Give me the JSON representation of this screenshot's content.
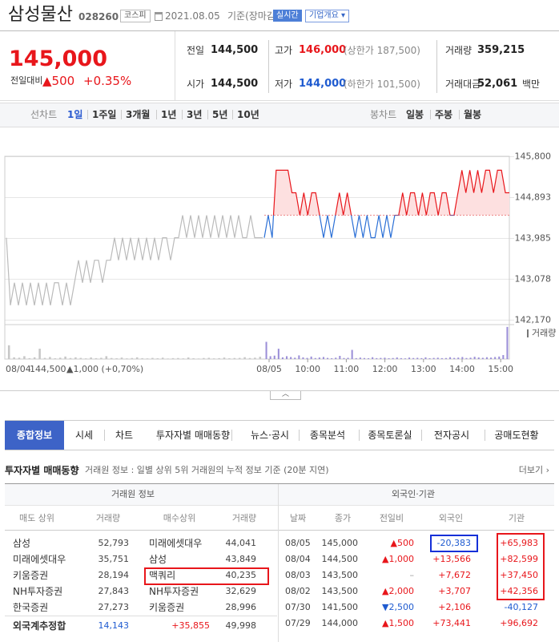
{
  "header": {
    "name": "삼성물산",
    "code": "028260",
    "market": "코스피",
    "date": "2021.08.05",
    "status": "기준(장마감)",
    "realtime": "실시간",
    "company_menu": "기업개요 ▾"
  },
  "price": {
    "current": "145,000",
    "change_label": "전일대비",
    "change": "▲500",
    "change_rate": "+0.35%",
    "stats": [
      {
        "label": "전일",
        "value": "144,500"
      },
      {
        "label": "고가",
        "value": "146,000",
        "note": "(상한가 187,500)"
      },
      {
        "label": "거래량",
        "value": "359,215"
      },
      {
        "label": "시가",
        "value": "144,500"
      },
      {
        "label": "저가",
        "value": "144,000",
        "note": "(하한가 101,500)"
      },
      {
        "label": "거래대금",
        "value": "52,061",
        "unit": "백만"
      }
    ]
  },
  "chart_tabs": {
    "line_label": "선차트",
    "line_periods": [
      "1일",
      "1주일",
      "3개월",
      "1년",
      "3년",
      "5년",
      "10년"
    ],
    "active_period": 0,
    "candle_label": "봉차트",
    "candle_periods": [
      "일봉",
      "주봉",
      "월봉"
    ]
  },
  "chart_data": {
    "type": "line",
    "ylim": [
      142070,
      145810
    ],
    "yticks": [
      {
        "value": 145800,
        "label": "145,800"
      },
      {
        "value": 144893,
        "label": "144,893"
      },
      {
        "value": 143985,
        "label": "143,985"
      },
      {
        "value": 143078,
        "label": "143,078"
      },
      {
        "value": 142170,
        "label": "142,170"
      }
    ],
    "base": 144500,
    "previous_day": [
      144000,
      142500,
      143000,
      142500,
      143000,
      142500,
      143000,
      142500,
      143000,
      142500,
      143000,
      142500,
      143000,
      143000,
      142500,
      143000,
      142500,
      143000,
      143500,
      143000,
      143500,
      143000,
      143500,
      143500,
      143000,
      143500,
      143500,
      144000,
      143500,
      144000,
      143500,
      144000,
      143500,
      144000,
      143500,
      144000,
      143500,
      144000,
      143500,
      144000,
      144000,
      143500,
      144000,
      144000,
      144500,
      144000,
      144500,
      144000,
      144500,
      144000,
      144500,
      144000,
      144500,
      144000,
      144500,
      144000,
      144500,
      144000,
      144500,
      144000,
      144000,
      144500,
      144000,
      144000,
      144000
    ],
    "today": [
      144000,
      144500,
      144000,
      145500,
      145500,
      145500,
      145500,
      145000,
      145000,
      144500,
      145000,
      144500,
      145000,
      145000,
      144500,
      144000,
      144500,
      144000,
      144500,
      145000,
      144500,
      145000,
      144500,
      144000,
      144500,
      144000,
      144500,
      144000,
      144000,
      144500,
      144000,
      144500,
      144000,
      144500,
      144500,
      145000,
      144500,
      145000,
      145000,
      144500,
      145000,
      144500,
      145000,
      145000,
      144500,
      145000,
      145000,
      144500,
      144500,
      145000,
      145500,
      145000,
      145500,
      145000,
      145500,
      145000,
      145500,
      145500,
      145000,
      145500,
      145500,
      145000,
      145000
    ],
    "volume_label": "거래량",
    "volume_ylim": [
      0,
      30000
    ],
    "previous_volume": [
      12000,
      1500,
      1200,
      2500,
      800,
      1500,
      9000,
      1000,
      1800,
      700,
      1200,
      2200,
      900,
      1500,
      1000,
      600,
      1400,
      800,
      1100,
      2500,
      900,
      700,
      1300,
      600,
      900,
      1500,
      800,
      600,
      1000,
      700,
      1200,
      500,
      800,
      900,
      600,
      1400,
      700,
      500,
      900,
      1100,
      600,
      800,
      1300,
      700,
      900,
      1000,
      1600,
      900,
      1200,
      2000
    ],
    "today_volume": [
      15000,
      2500,
      3000,
      9000,
      1500,
      2500,
      1800,
      1200,
      3200,
      1500,
      1000,
      2200,
      900,
      1400,
      1800,
      1000,
      700,
      1200,
      2800,
      900,
      1100,
      8000,
      800,
      1300,
      900,
      700,
      1600,
      800,
      1000,
      1200,
      700,
      900,
      1400,
      800,
      600,
      1300,
      900,
      1100,
      800,
      1500,
      700,
      1000,
      1200,
      800,
      900,
      1600,
      1000,
      1300,
      1800,
      900,
      1200,
      2000,
      1400,
      1100,
      1600,
      1300,
      1800,
      2200,
      3500,
      28000
    ],
    "previous_date": "08/04",
    "previous_close": "144,500",
    "previous_change": "▲1,000 (+0,70%)",
    "today_labels": [
      "08/05",
      "10:00",
      "11:00",
      "12:00",
      "13:00",
      "14:00",
      "15:00"
    ]
  },
  "tabs": {
    "items": [
      "종합정보",
      "시세",
      "차트",
      "투자자별 매매동향",
      "뉴스·공시",
      "종목분석",
      "종목토론실",
      "전자공시",
      "공매도현황"
    ],
    "active": 0
  },
  "investor_section": {
    "title": "투자자별 매매동향",
    "description": "거래원 정보 : 일별 상위 5위 거래원의 누적 정보 기준 (20분 지연)",
    "more": "더보기 ›"
  },
  "broker_table": {
    "title": "거래원 정보",
    "headers": [
      "매도 상위",
      "거래량",
      "매수상위",
      "거래량"
    ],
    "rows": [
      [
        "삼성",
        "52,793",
        "미래에셋대우",
        "44,041"
      ],
      [
        "미래에셋대우",
        "35,751",
        "삼성",
        "43,849"
      ],
      [
        "키움증권",
        "28,194",
        "맥쿼리",
        "40,235"
      ],
      [
        "NH투자증권",
        "27,843",
        "NH투자증권",
        "32,629"
      ],
      [
        "한국증권",
        "27,273",
        "키움증권",
        "28,996"
      ]
    ],
    "total": [
      "외국계추정합",
      "14,143",
      "+35,855",
      "49,998"
    ]
  },
  "institution_table": {
    "title": "외국인·기관",
    "headers": [
      "날짜",
      "종가",
      "전일비",
      "외국인",
      "기관"
    ],
    "rows": [
      [
        "08/05",
        "145,000",
        "▲500",
        "-20,383",
        "+65,983"
      ],
      [
        "08/04",
        "144,500",
        "▲1,000",
        "+13,566",
        "+82,599"
      ],
      [
        "08/03",
        "143,500",
        "–",
        "+7,672",
        "+37,450"
      ],
      [
        "08/02",
        "143,500",
        "▲2,000",
        "+3,707",
        "+42,356"
      ],
      [
        "07/30",
        "141,500",
        "▼2,500",
        "+2,106",
        "-40,127"
      ],
      [
        "07/29",
        "144,000",
        "▲1,500",
        "+73,441",
        "+96,692"
      ]
    ]
  }
}
